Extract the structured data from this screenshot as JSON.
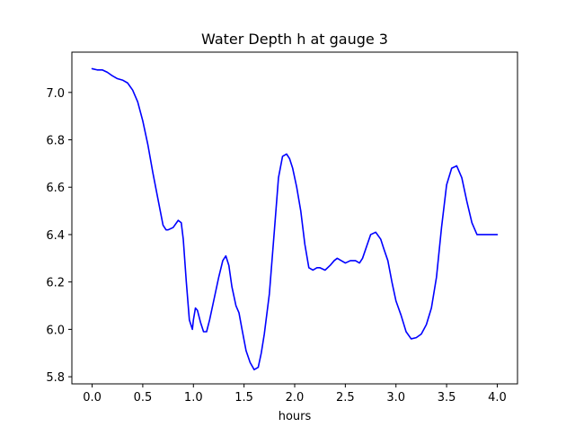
{
  "chart_data": {
    "type": "line",
    "title": "Water Depth h at gauge 3",
    "xlabel": "hours",
    "ylabel": "",
    "xlim": [
      -0.2,
      4.2
    ],
    "ylim": [
      5.77,
      7.17
    ],
    "xticks": [
      0.0,
      0.5,
      1.0,
      1.5,
      2.0,
      2.5,
      3.0,
      3.5,
      4.0
    ],
    "xtick_labels": [
      "0.0",
      "0.5",
      "1.0",
      "1.5",
      "2.0",
      "2.5",
      "3.0",
      "3.5",
      "4.0"
    ],
    "yticks": [
      5.8,
      6.0,
      6.2,
      6.4,
      6.6,
      6.8,
      7.0
    ],
    "ytick_labels": [
      "5.8",
      "6.0",
      "6.2",
      "6.4",
      "6.6",
      "6.8",
      "7.0"
    ],
    "grid": false,
    "series": [
      {
        "color": "#0000ff",
        "x": [
          0.0,
          0.05,
          0.1,
          0.15,
          0.2,
          0.25,
          0.3,
          0.35,
          0.4,
          0.45,
          0.5,
          0.55,
          0.6,
          0.65,
          0.7,
          0.73,
          0.75,
          0.8,
          0.85,
          0.88,
          0.9,
          0.93,
          0.96,
          0.99,
          1.0,
          1.02,
          1.04,
          1.07,
          1.1,
          1.13,
          1.16,
          1.2,
          1.25,
          1.29,
          1.32,
          1.35,
          1.38,
          1.42,
          1.45,
          1.48,
          1.52,
          1.56,
          1.6,
          1.64,
          1.67,
          1.7,
          1.75,
          1.8,
          1.84,
          1.88,
          1.92,
          1.95,
          1.98,
          2.02,
          2.06,
          2.1,
          2.14,
          2.18,
          2.22,
          2.25,
          2.3,
          2.35,
          2.39,
          2.42,
          2.46,
          2.5,
          2.55,
          2.6,
          2.64,
          2.67,
          2.71,
          2.75,
          2.8,
          2.85,
          2.88,
          2.92,
          2.96,
          3.0,
          3.05,
          3.1,
          3.15,
          3.2,
          3.25,
          3.3,
          3.35,
          3.4,
          3.45,
          3.5,
          3.55,
          3.6,
          3.65,
          3.7,
          3.75,
          3.8,
          3.83,
          3.87,
          3.9,
          3.95,
          4.0
        ],
        "y": [
          7.1,
          7.095,
          7.095,
          7.085,
          7.07,
          7.058,
          7.052,
          7.04,
          7.01,
          6.96,
          6.88,
          6.78,
          6.66,
          6.55,
          6.44,
          6.42,
          6.42,
          6.43,
          6.46,
          6.45,
          6.38,
          6.2,
          6.04,
          6.0,
          6.04,
          6.09,
          6.08,
          6.03,
          5.99,
          5.99,
          6.04,
          6.12,
          6.22,
          6.29,
          6.31,
          6.27,
          6.18,
          6.1,
          6.07,
          6.0,
          5.91,
          5.86,
          5.83,
          5.84,
          5.9,
          5.98,
          6.15,
          6.42,
          6.64,
          6.73,
          6.74,
          6.72,
          6.68,
          6.6,
          6.5,
          6.36,
          6.26,
          6.25,
          6.26,
          6.26,
          6.25,
          6.27,
          6.29,
          6.3,
          6.29,
          6.28,
          6.29,
          6.29,
          6.28,
          6.3,
          6.35,
          6.4,
          6.41,
          6.38,
          6.34,
          6.29,
          6.2,
          6.12,
          6.06,
          5.99,
          5.96,
          5.965,
          5.98,
          6.02,
          6.09,
          6.22,
          6.43,
          6.61,
          6.68,
          6.69,
          6.64,
          6.54,
          6.45,
          6.4,
          6.4,
          6.4,
          6.4,
          6.4,
          6.4
        ]
      }
    ]
  }
}
